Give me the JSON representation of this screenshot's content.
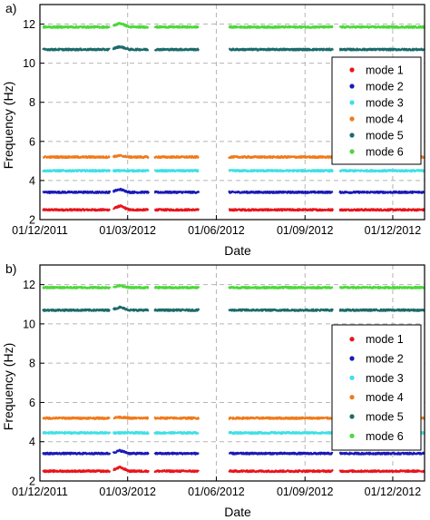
{
  "panels": [
    {
      "label": "a)"
    },
    {
      "label": "b)"
    }
  ],
  "chart_data": [
    {
      "type": "scatter",
      "panel_label": "a)",
      "xlabel": "Date",
      "ylabel": "Frequency (Hz)",
      "xlim": [
        "2011-12-01",
        "2013-01-03"
      ],
      "ylim": [
        2,
        13
      ],
      "x_ticks": [
        "2011-12-01",
        "2012-03-01",
        "2012-06-01",
        "2012-09-01",
        "2012-12-01"
      ],
      "x_tick_labels": [
        "01/12/2011",
        "01/03/2012",
        "01/06/2012",
        "01/09/2012",
        "01/12/2012"
      ],
      "y_ticks": [
        2,
        4,
        6,
        8,
        10,
        12
      ],
      "y_tick_labels": [
        "2",
        "4",
        "6",
        "8",
        "10",
        "12"
      ],
      "grid": true,
      "legend_position": "right",
      "data_segments": [
        [
          "2011-12-04",
          "2012-02-12"
        ],
        [
          "2012-02-15",
          "2012-03-23"
        ],
        [
          "2012-03-29",
          "2012-05-14"
        ],
        [
          "2012-06-14",
          "2012-09-30"
        ],
        [
          "2012-10-07",
          "2013-01-03"
        ]
      ],
      "series": [
        {
          "name": "mode 1",
          "color": "#e8141b",
          "level": 2.5,
          "bump": 2.7
        },
        {
          "name": "mode 2",
          "color": "#1a1ab8",
          "level": 3.4,
          "bump": 3.55
        },
        {
          "name": "mode 3",
          "color": "#3fe0e6",
          "level": 4.5,
          "bump": 4.5
        },
        {
          "name": "mode 4",
          "color": "#f07a1a",
          "level": 5.2,
          "bump": 5.27
        },
        {
          "name": "mode 5",
          "color": "#1c6b6b",
          "level": 10.7,
          "bump": 10.85
        },
        {
          "name": "mode 6",
          "color": "#4dd83a",
          "level": 11.85,
          "bump": 12.05
        }
      ]
    },
    {
      "type": "scatter",
      "panel_label": "b)",
      "xlabel": "Date",
      "ylabel": "Frequency (Hz)",
      "xlim": [
        "2011-12-01",
        "2013-01-03"
      ],
      "ylim": [
        2,
        13
      ],
      "x_ticks": [
        "2011-12-01",
        "2012-03-01",
        "2012-06-01",
        "2012-09-01",
        "2012-12-01"
      ],
      "x_tick_labels": [
        "01/12/2011",
        "01/03/2012",
        "01/06/2012",
        "01/09/2012",
        "01/12/2012"
      ],
      "y_ticks": [
        2,
        4,
        6,
        8,
        10,
        12
      ],
      "y_tick_labels": [
        "2",
        "4",
        "6",
        "8",
        "10",
        "12"
      ],
      "grid": true,
      "legend_position": "right",
      "data_segments": [
        [
          "2011-12-04",
          "2012-02-12"
        ],
        [
          "2012-02-15",
          "2012-03-23"
        ],
        [
          "2012-03-29",
          "2012-05-14"
        ],
        [
          "2012-06-14",
          "2012-09-30"
        ],
        [
          "2012-10-07",
          "2013-01-03"
        ]
      ],
      "series": [
        {
          "name": "mode 1",
          "color": "#e8141b",
          "level": 2.5,
          "bump": 2.7
        },
        {
          "name": "mode 2",
          "color": "#1a1ab8",
          "level": 3.4,
          "bump": 3.55
        },
        {
          "name": "mode 3",
          "color": "#3fe0e6",
          "level": 4.45,
          "bump": 4.45
        },
        {
          "name": "mode 4",
          "color": "#f07a1a",
          "level": 5.2,
          "bump": 5.25
        },
        {
          "name": "mode 5",
          "color": "#1c6b6b",
          "level": 10.7,
          "bump": 10.85
        },
        {
          "name": "mode 6",
          "color": "#4dd83a",
          "level": 11.85,
          "bump": 11.95
        }
      ]
    }
  ]
}
